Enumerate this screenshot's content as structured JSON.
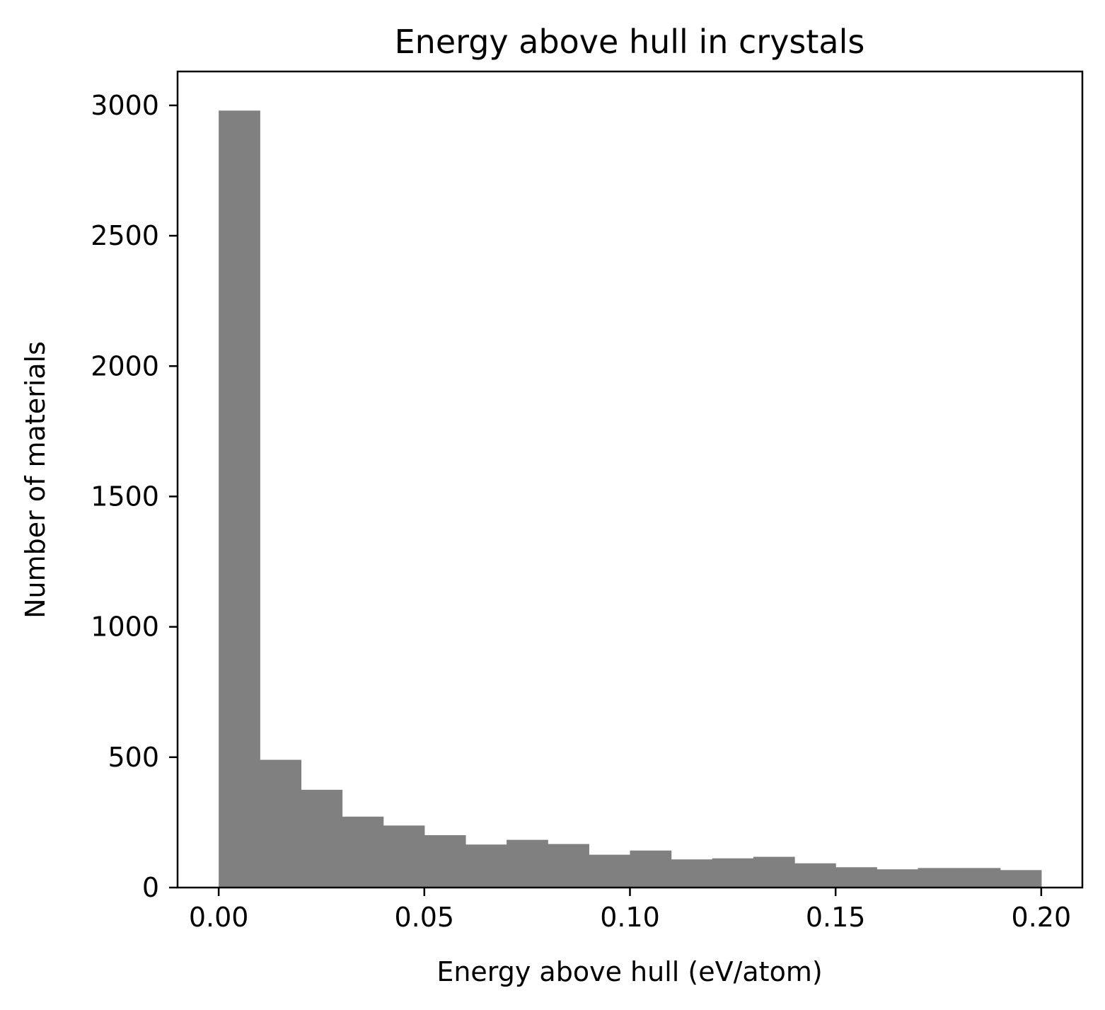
{
  "chart_data": {
    "type": "bar",
    "title": "Energy above hull in crystals",
    "xlabel": "Energy above hull (eV/atom)",
    "ylabel": "Number of materials",
    "bin_edges": [
      0.0,
      0.01,
      0.02,
      0.03,
      0.04,
      0.05,
      0.06,
      0.07,
      0.08,
      0.09,
      0.1,
      0.11,
      0.12,
      0.13,
      0.14,
      0.15,
      0.16,
      0.17,
      0.18,
      0.19,
      0.2
    ],
    "values": [
      2980,
      490,
      375,
      272,
      238,
      201,
      165,
      183,
      167,
      126,
      142,
      108,
      112,
      118,
      93,
      78,
      70,
      75,
      75,
      67
    ],
    "xlim": [
      -0.01,
      0.21
    ],
    "ylim": [
      0,
      3130
    ],
    "xticks": [
      "0.00",
      "0.05",
      "0.10",
      "0.15",
      "0.20"
    ],
    "xtick_values": [
      0.0,
      0.05,
      0.1,
      0.15,
      0.2
    ],
    "yticks": [
      "0",
      "500",
      "1000",
      "1500",
      "2000",
      "2500",
      "3000"
    ],
    "ytick_values": [
      0,
      500,
      1000,
      1500,
      2000,
      2500,
      3000
    ],
    "bar_color": "#808080",
    "grid": false,
    "legend": "none"
  }
}
